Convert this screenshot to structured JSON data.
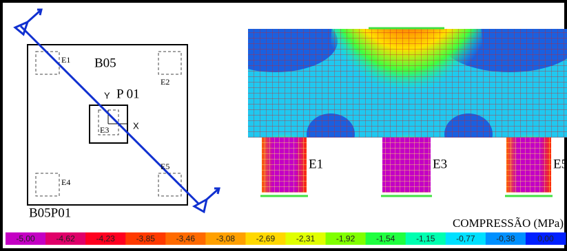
{
  "plan": {
    "beam": "B05",
    "pile_labels": [
      "E1",
      "E2",
      "E3",
      "E4",
      "E5"
    ],
    "column": "P 01",
    "axis_y": "Y",
    "axis_x": "X",
    "name": "B05P01"
  },
  "model": {
    "pile_labels": [
      "E1",
      "E3",
      "E5"
    ]
  },
  "legend": {
    "title": "COMPRESSÃO (MPa)",
    "items": [
      {
        "label": "-5,00",
        "color": "#c400c4"
      },
      {
        "label": "-4,62",
        "color": "#e0006a"
      },
      {
        "label": "-4,23",
        "color": "#ff0020"
      },
      {
        "label": "-3,85",
        "color": "#ff3a00"
      },
      {
        "label": "-3,46",
        "color": "#ff6a00"
      },
      {
        "label": "-3,08",
        "color": "#ffa000"
      },
      {
        "label": "-2,69",
        "color": "#ffd800"
      },
      {
        "label": "-2,31",
        "color": "#e0ff00"
      },
      {
        "label": "-1,92",
        "color": "#80ff00"
      },
      {
        "label": "-1,54",
        "color": "#20ff40"
      },
      {
        "label": "-1,15",
        "color": "#00ffb0"
      },
      {
        "label": "-0,77",
        "color": "#00e0ff"
      },
      {
        "label": "-0,38",
        "color": "#0090ff"
      },
      {
        "label": "0,00",
        "color": "#0020ff"
      }
    ]
  }
}
